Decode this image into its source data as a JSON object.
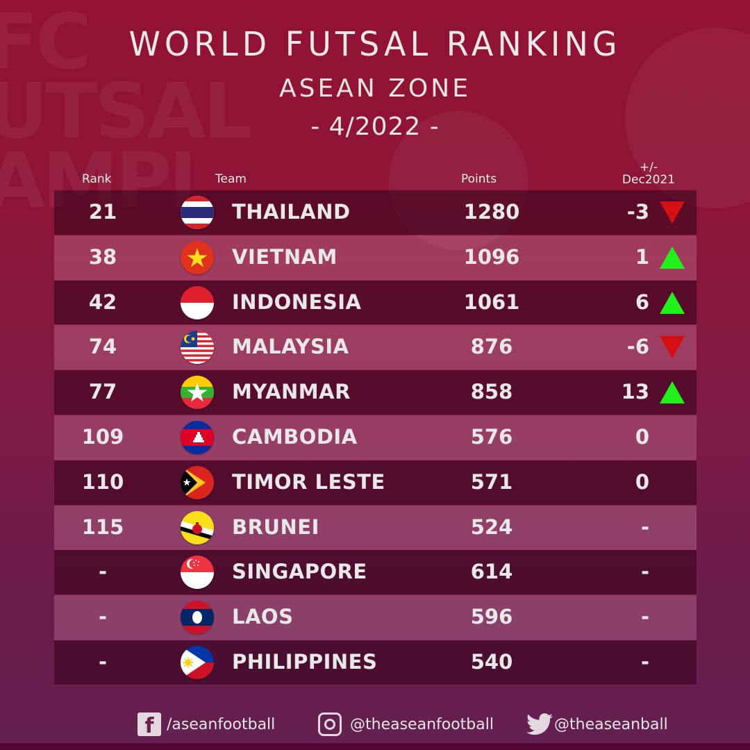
{
  "header": {
    "title": "WORLD FUTSAL RANKING",
    "subtitle": "ASEAN ZONE",
    "date": "- 4/2022 -"
  },
  "columns": {
    "rank": "Rank",
    "team": "Team",
    "points": "Points",
    "change_line1": "+/-",
    "change_line2": "Dec2021"
  },
  "colors": {
    "down_arrow": "#d60f13",
    "up_arrow": "#1ef21a",
    "background": "#8e1436"
  },
  "rows": [
    {
      "rank": "21",
      "team": "THAILAND",
      "points": "1280",
      "change": "-3",
      "trend": "down",
      "flag": "thailand"
    },
    {
      "rank": "38",
      "team": "VIETNAM",
      "points": "1096",
      "change": "1",
      "trend": "up",
      "flag": "vietnam"
    },
    {
      "rank": "42",
      "team": "INDONESIA",
      "points": "1061",
      "change": "6",
      "trend": "up",
      "flag": "indonesia"
    },
    {
      "rank": "74",
      "team": "MALAYSIA",
      "points": "876",
      "change": "-6",
      "trend": "down",
      "flag": "malaysia"
    },
    {
      "rank": "77",
      "team": "MYANMAR",
      "points": "858",
      "change": "13",
      "trend": "up",
      "flag": "myanmar"
    },
    {
      "rank": "109",
      "team": "CAMBODIA",
      "points": "576",
      "change": "0",
      "trend": "none",
      "flag": "cambodia"
    },
    {
      "rank": "110",
      "team": "TIMOR LESTE",
      "points": "571",
      "change": "0",
      "trend": "none",
      "flag": "timor-leste"
    },
    {
      "rank": "115",
      "team": "BRUNEI",
      "points": "524",
      "change": "-",
      "trend": "none",
      "flag": "brunei"
    },
    {
      "rank": "-",
      "team": "SINGAPORE",
      "points": "614",
      "change": "-",
      "trend": "none",
      "flag": "singapore"
    },
    {
      "rank": "-",
      "team": "LAOS",
      "points": "596",
      "change": "-",
      "trend": "none",
      "flag": "laos"
    },
    {
      "rank": "-",
      "team": "PHILIPPINES",
      "points": "540",
      "change": "-",
      "trend": "none",
      "flag": "philippines"
    }
  ],
  "footer": {
    "facebook": "/aseanfootball",
    "instagram": "@theaseanfootball",
    "twitter": "@theaseanball"
  }
}
